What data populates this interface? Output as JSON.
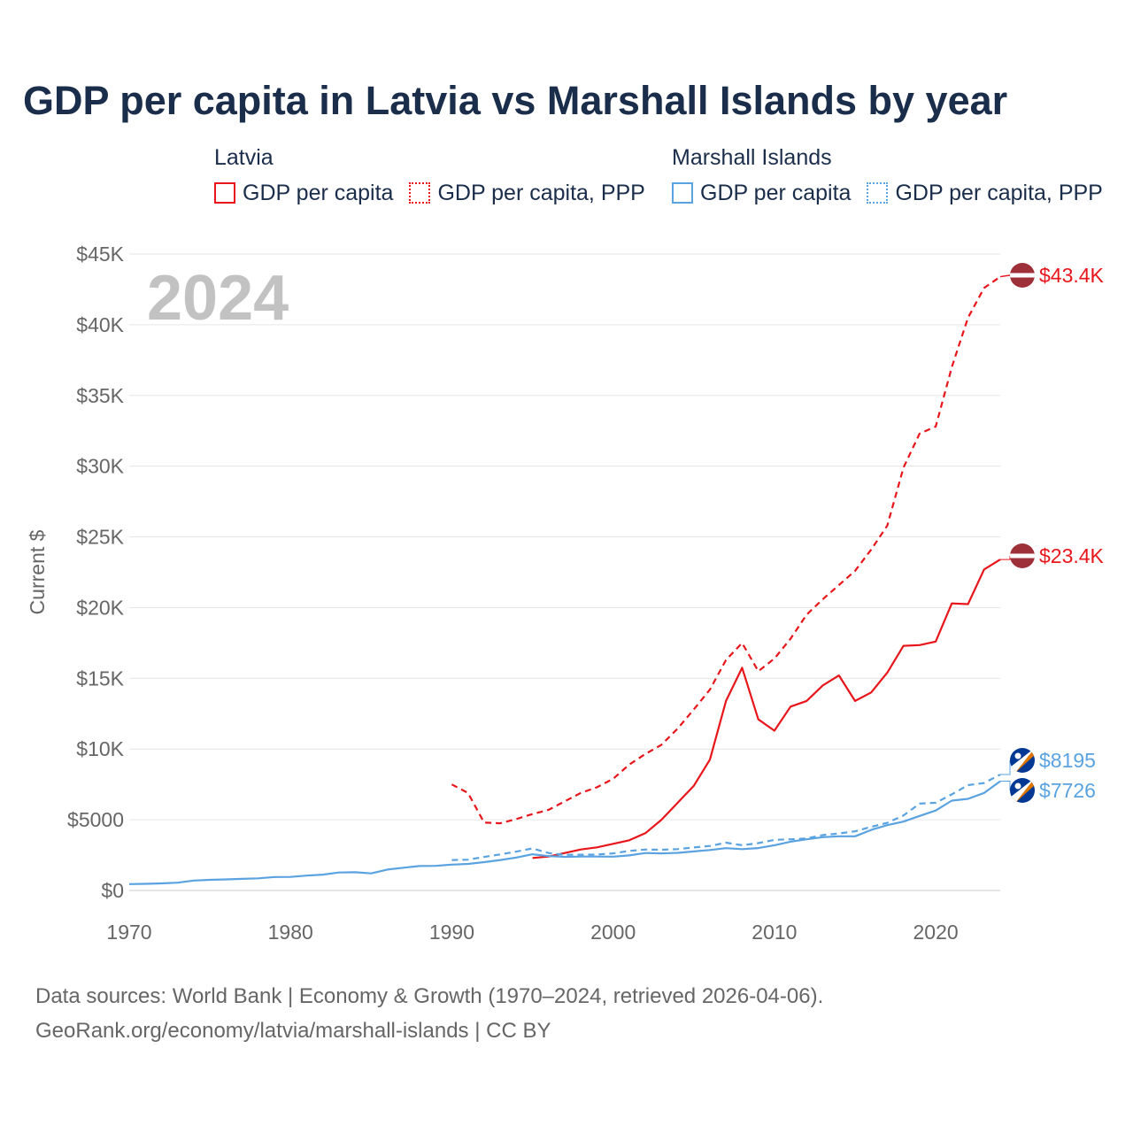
{
  "title": "GDP per capita in Latvia vs Marshall Islands by year",
  "legend": {
    "groups": [
      {
        "title": "Latvia",
        "items": [
          {
            "label": "GDP per capita",
            "color": "#e8161b",
            "style": "solid"
          },
          {
            "label": "GDP per capita, PPP",
            "color": "#e8161b",
            "style": "dotted"
          }
        ]
      },
      {
        "title": "Marshall Islands",
        "items": [
          {
            "label": "GDP per capita",
            "color": "#5aa3e0",
            "style": "solid"
          },
          {
            "label": "GDP per capita, PPP",
            "color": "#5aa3e0",
            "style": "dotted"
          }
        ]
      }
    ]
  },
  "footer": {
    "line1": "Data sources: World Bank | Economy & Growth (1970–2024, retrieved 2026-04-06).",
    "line2": "GeoRank.org/economy/latvia/marshall-islands | CC BY"
  },
  "chart_data": {
    "type": "line",
    "title": "GDP per capita in Latvia vs Marshall Islands by year",
    "year_label": "2024",
    "ylabel": "Current $",
    "xlabel": "",
    "xlim": [
      1970,
      2024
    ],
    "ylim": [
      0,
      45000
    ],
    "x_ticks": [
      1970,
      1980,
      1990,
      2000,
      2010,
      2020
    ],
    "x_tick_labels": [
      "1970",
      "1980",
      "1990",
      "2000",
      "2010",
      "2020"
    ],
    "y_ticks": [
      0,
      5000,
      10000,
      15000,
      20000,
      25000,
      30000,
      35000,
      40000,
      45000
    ],
    "y_tick_labels": [
      "$0",
      "$5000",
      "$10K",
      "$15K",
      "$20K",
      "$25K",
      "$30K",
      "$35K",
      "$40K",
      "$45K"
    ],
    "grid": true,
    "series": [
      {
        "name": "Latvia GDP per capita",
        "country": "Latvia",
        "color": "#e8161b",
        "dash": "solid",
        "x": [
          1995,
          1996,
          1997,
          1998,
          1999,
          2000,
          2001,
          2002,
          2003,
          2004,
          2005,
          2006,
          2007,
          2008,
          2009,
          2010,
          2011,
          2012,
          2013,
          2014,
          2015,
          2016,
          2017,
          2018,
          2019,
          2020,
          2021,
          2022,
          2023,
          2024
        ],
        "values": [
          2300,
          2400,
          2650,
          2900,
          3050,
          3300,
          3550,
          4050,
          5000,
          6200,
          7400,
          9250,
          13400,
          15750,
          12100,
          11300,
          13000,
          13400,
          14500,
          15200,
          13400,
          14000,
          15400,
          17300,
          17350,
          17600,
          20300,
          20250,
          22700,
          23400
        ],
        "end_label": "$23.4K",
        "end_value": 23400
      },
      {
        "name": "Latvia GDP per capita, PPP",
        "country": "Latvia",
        "color": "#e8161b",
        "dash": "dashed",
        "x": [
          1990,
          1991,
          1992,
          1993,
          1994,
          1995,
          1996,
          1997,
          1998,
          1999,
          2000,
          2001,
          2002,
          2003,
          2004,
          2005,
          2006,
          2007,
          2008,
          2009,
          2010,
          2011,
          2012,
          2013,
          2014,
          2015,
          2016,
          2017,
          2018,
          2019,
          2020,
          2021,
          2022,
          2023,
          2024
        ],
        "values": [
          7500,
          6900,
          4800,
          4750,
          5050,
          5400,
          5700,
          6300,
          6900,
          7300,
          7900,
          8900,
          9650,
          10300,
          11450,
          12800,
          14200,
          16300,
          17500,
          15500,
          16400,
          17800,
          19500,
          20600,
          21600,
          22600,
          24100,
          25800,
          29900,
          32300,
          32800,
          37000,
          40500,
          42600,
          43400
        ],
        "end_label": "$43.4K",
        "end_value": 43400
      },
      {
        "name": "Marshall Islands GDP per capita",
        "country": "Marshall Islands",
        "color": "#5aa3e0",
        "dash": "solid",
        "x": [
          1970,
          1971,
          1972,
          1973,
          1974,
          1975,
          1976,
          1977,
          1978,
          1979,
          1980,
          1981,
          1982,
          1983,
          1984,
          1985,
          1986,
          1987,
          1988,
          1989,
          1990,
          1991,
          1992,
          1993,
          1994,
          1995,
          1996,
          1997,
          1998,
          1999,
          2000,
          2001,
          2002,
          2003,
          2004,
          2005,
          2006,
          2007,
          2008,
          2009,
          2010,
          2011,
          2012,
          2013,
          2014,
          2015,
          2016,
          2017,
          2018,
          2019,
          2020,
          2021,
          2022,
          2023,
          2024
        ],
        "values": [
          450,
          470,
          500,
          550,
          700,
          750,
          780,
          820,
          860,
          950,
          960,
          1050,
          1120,
          1270,
          1290,
          1210,
          1480,
          1610,
          1730,
          1740,
          1830,
          1880,
          2000,
          2150,
          2330,
          2560,
          2430,
          2380,
          2400,
          2400,
          2390,
          2480,
          2650,
          2620,
          2660,
          2760,
          2860,
          2990,
          2920,
          3000,
          3200,
          3450,
          3620,
          3770,
          3830,
          3830,
          4280,
          4620,
          4870,
          5270,
          5650,
          6350,
          6480,
          6900,
          7726
        ],
        "end_label": "$7726",
        "end_value": 7726
      },
      {
        "name": "Marshall Islands GDP per capita, PPP",
        "country": "Marshall Islands",
        "color": "#5aa3e0",
        "dash": "dashed",
        "x": [
          1990,
          1991,
          1992,
          1993,
          1994,
          1995,
          1996,
          1997,
          1998,
          1999,
          2000,
          2001,
          2002,
          2003,
          2004,
          2005,
          2006,
          2007,
          2008,
          2009,
          2010,
          2011,
          2012,
          2013,
          2014,
          2015,
          2016,
          2017,
          2018,
          2019,
          2020,
          2021,
          2022,
          2023,
          2024
        ],
        "values": [
          2150,
          2180,
          2370,
          2550,
          2750,
          2970,
          2650,
          2520,
          2530,
          2540,
          2620,
          2800,
          2890,
          2880,
          2920,
          3040,
          3150,
          3380,
          3200,
          3350,
          3580,
          3620,
          3680,
          3920,
          4030,
          4180,
          4500,
          4780,
          5300,
          6140,
          6200,
          6800,
          7450,
          7600,
          8195
        ],
        "end_label": "$8195",
        "end_value": 8195
      }
    ]
  }
}
